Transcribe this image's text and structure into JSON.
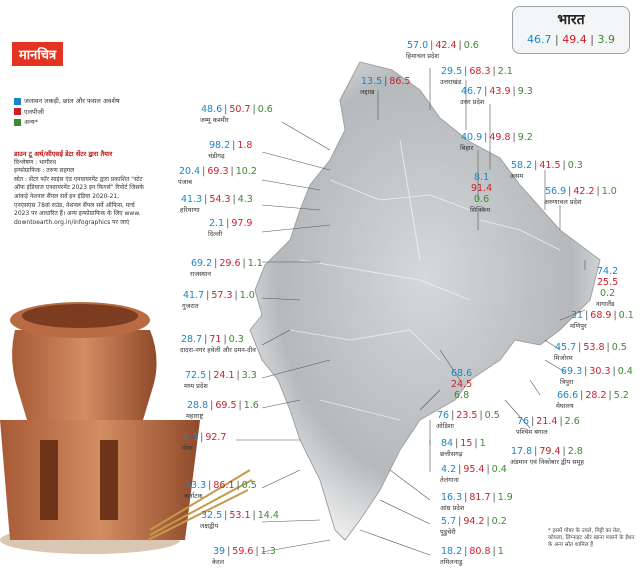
{
  "header": {
    "title": "मानचित्र"
  },
  "national": {
    "name": "भारत",
    "forest": "46.7",
    "lpg": "49.4",
    "other": "3.9"
  },
  "legend": [
    {
      "label": "जलावन लकड़ी, छाल और फसल अवशेष",
      "color": "#1a86c7"
    },
    {
      "label": "एलपीजी",
      "color": "#cc1f2a"
    },
    {
      "label": "अन्य*",
      "color": "#3a8a2e"
    }
  ],
  "credits": {
    "logo": "डाउन टू अर्थ/सीएसई डेटा सेंटर द्वारा तैयार",
    "lines": [
      "विश्लेषण : भागीरथ",
      "इन्फोग्राफिक : तरुण सहगल",
      "स्रोत : सेंटर फॉर साइंस एंड एनवायरमेंट द्वारा प्रकाशित \"स्टेट",
      "ऑफ इंडियाज एनवायरमेंट 2023 इन फिगर्स\" रिपोर्ट जिसके",
      "आंकड़े नेशनल सैंपल सर्वे इन इंडिया 2020-21,",
      "एनएसएस 78वां राउंड, नेशनल सैंपल सर्वे ऑफिस, मार्च",
      "2023 पर आधारित हैं। अन्य इन्फोग्राफिक के लिए www.",
      "downtoearth.org.in/infographics पर जाएं"
    ]
  },
  "states": [
    {
      "id": "ladakh",
      "name": "लद्दाख",
      "v": [
        "13.5",
        "86.5",
        ""
      ]
    },
    {
      "id": "himachal",
      "name": "हिमाचल प्रदेश",
      "v": [
        "57.0",
        "42.4",
        "0.6"
      ]
    },
    {
      "id": "uttarakhand",
      "name": "उत्तराखंड",
      "v": [
        "29.5",
        "68.3",
        "2.1"
      ]
    },
    {
      "id": "up",
      "name": "उत्तर प्रदेश",
      "v": [
        "46.7",
        "43.9",
        "9.3"
      ]
    },
    {
      "id": "jk",
      "name": "जम्मू कश्मीर",
      "v": [
        "48.6",
        "50.7",
        "0.6"
      ]
    },
    {
      "id": "chandigarh",
      "name": "चंडीगढ़",
      "v": [
        "98.2",
        "1.8",
        ""
      ]
    },
    {
      "id": "punjab",
      "name": "पंजाब",
      "v": [
        "20.4",
        "69.3",
        "10.2"
      ]
    },
    {
      "id": "haryana",
      "name": "हरियाणा",
      "v": [
        "41.3",
        "54.3",
        "4.3"
      ]
    },
    {
      "id": "delhi",
      "name": "दिल्ली",
      "v": [
        "2.1",
        "97.9",
        ""
      ]
    },
    {
      "id": "bihar",
      "name": "बिहार",
      "v": [
        "40.9",
        "49.8",
        "9.2"
      ]
    },
    {
      "id": "sikkim",
      "name": "सिक्किम",
      "v": [
        "8.1",
        "91.4",
        "0.6"
      ]
    },
    {
      "id": "assam",
      "name": "असम",
      "v": [
        "58.2",
        "41.5",
        "0.3"
      ]
    },
    {
      "id": "arunachal",
      "name": "अरुणाचल प्रदेश",
      "v": [
        "56.9",
        "42.2",
        "1.0"
      ]
    },
    {
      "id": "rajasthan",
      "name": "राजस्थान",
      "v": [
        "69.2",
        "29.6",
        "1.1"
      ]
    },
    {
      "id": "nagaland",
      "name": "नागालैंड",
      "v": [
        "74.2",
        "25.5",
        "0.2"
      ]
    },
    {
      "id": "gujarat",
      "name": "गुजरात",
      "v": [
        "41.7",
        "57.3",
        "1.0"
      ]
    },
    {
      "id": "manipur",
      "name": "मणिपुर",
      "v": [
        "31",
        "68.9",
        "0.1"
      ]
    },
    {
      "id": "dnhdd",
      "name": "दादरा-नगर हवेली और दमन-दीव",
      "v": [
        "28.7",
        "71",
        "0.3"
      ]
    },
    {
      "id": "mp",
      "name": "मध्य प्रदेश",
      "v": [
        "72.5",
        "24.1",
        "3.3"
      ]
    },
    {
      "id": "mizoram",
      "name": "मिजोरम",
      "v": [
        "45.7",
        "53.8",
        "0.5"
      ]
    },
    {
      "id": "wb_small",
      "name": "",
      "v": [
        "68.6",
        "24.5",
        "6.8"
      ]
    },
    {
      "id": "tripura",
      "name": "त्रिपुरा",
      "v": [
        "69.3",
        "30.3",
        "0.4"
      ]
    },
    {
      "id": "maharashtra",
      "name": "महाराष्ट्र",
      "v": [
        "28.8",
        "69.5",
        "1.6"
      ]
    },
    {
      "id": "meghalaya",
      "name": "मेघालय",
      "v": [
        "66.6",
        "28.2",
        "5.2"
      ]
    },
    {
      "id": "odisha",
      "name": "ओडिशा",
      "v": [
        "76",
        "23.5",
        "0.5"
      ]
    },
    {
      "id": "wb",
      "name": "पश्चिम बंगाल",
      "v": [
        "76",
        "21.4",
        "2.6"
      ]
    },
    {
      "id": "goa",
      "name": "गोवा",
      "v": [
        "7.3",
        "92.7",
        ""
      ]
    },
    {
      "id": "chhattisgarh",
      "name": "छत्तीसगढ़",
      "v": [
        "84",
        "15",
        "1"
      ]
    },
    {
      "id": "telangana",
      "name": "तेलंगाना",
      "v": [
        "4.2",
        "95.4",
        "0.4"
      ]
    },
    {
      "id": "karnataka",
      "name": "कर्नाटक",
      "v": [
        "13.3",
        "86.1",
        "0.5"
      ]
    },
    {
      "id": "andaman",
      "name": "अंडमान एवं निकोबार द्वीप समूह",
      "v": [
        "17.8",
        "79.4",
        "2.8"
      ]
    },
    {
      "id": "ap",
      "name": "आंध्र प्रदेश",
      "v": [
        "16.3",
        "81.7",
        "1.9"
      ]
    },
    {
      "id": "lakshadweep",
      "name": "लक्षद्वीप",
      "v": [
        "32.5",
        "53.1",
        "14.4"
      ]
    },
    {
      "id": "puducherry",
      "name": "पुडुचेरी",
      "v": [
        "5.7",
        "94.2",
        "0.2"
      ]
    },
    {
      "id": "kerala",
      "name": "केरल",
      "v": [
        "39",
        "59.6",
        "1.3"
      ]
    },
    {
      "id": "tamilnadu",
      "name": "तमिलनाडु",
      "v": [
        "18.2",
        "80.8",
        "1"
      ]
    }
  ],
  "footnote": "* इसमें गोबर के उपले, मिट्टी का तेल, कोयला, लिग्नाइट और खाना पकाने के ईंधन के अन्य स्रोत शामिल हैं"
}
